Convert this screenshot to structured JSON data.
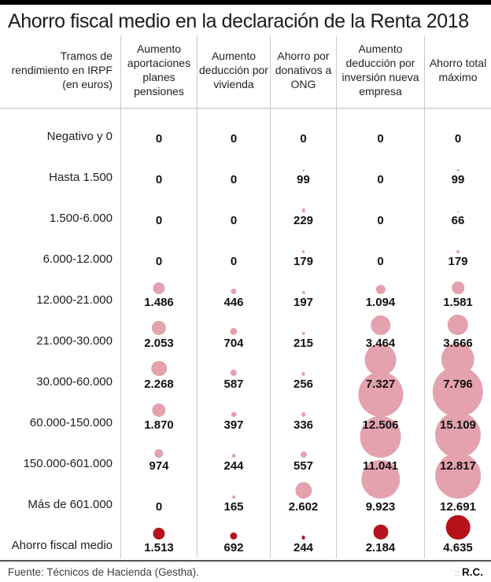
{
  "title": "Ahorro fiscal medio en la declaración de la Renta 2018",
  "source": "Fuente: Técnicos de Hacienda (Gestha).",
  "credit_prefix": "::",
  "credit": "R.C.",
  "colors": {
    "bubble_pink": "#e3a2ae",
    "bubble_red": "#b5121b",
    "topbar": "#000000",
    "divider": "#c9c9c9"
  },
  "chart_data": {
    "type": "table",
    "subtype": "bubble-table",
    "title": "Ahorro fiscal medio en la declaración de la Renta 2018",
    "row_header": "Tramos de rendimiento en IRPF (en euros)",
    "columns": [
      "Aumento aportaciones planes pensiones",
      "Aumento deducción por vivienda",
      "Ahorro por donativos a ONG",
      "Aumento deducción por inversión nueva empresa",
      "Ahorro total máximo"
    ],
    "rows": [
      {
        "label": "Negativo y 0",
        "values": [
          0,
          0,
          0,
          0,
          0
        ],
        "total_row": false
      },
      {
        "label": "Hasta 1.500",
        "values": [
          0,
          0,
          99,
          0,
          99
        ],
        "total_row": false
      },
      {
        "label": "1.500-6.000",
        "values": [
          0,
          0,
          229,
          0,
          66
        ],
        "total_row": false
      },
      {
        "label": "6.000-12.000",
        "values": [
          0,
          0,
          179,
          0,
          179
        ],
        "total_row": false
      },
      {
        "label": "12.000-21.000",
        "values": [
          1486,
          446,
          197,
          1094,
          1581
        ],
        "total_row": false
      },
      {
        "label": "21.000-30.000",
        "values": [
          2053,
          704,
          215,
          3464,
          3666
        ],
        "total_row": false
      },
      {
        "label": "30.000-60.000",
        "values": [
          2268,
          587,
          256,
          7327,
          7796
        ],
        "total_row": false
      },
      {
        "label": "60.000-150.000",
        "values": [
          1870,
          397,
          336,
          12506,
          15109
        ],
        "total_row": false
      },
      {
        "label": "150.000-601.000",
        "values": [
          974,
          244,
          557,
          11041,
          12817
        ],
        "total_row": false
      },
      {
        "label": "Más de 601.000",
        "values": [
          0,
          165,
          2602,
          9923,
          12691
        ],
        "total_row": false
      },
      {
        "label": "Ahorro fiscal medio",
        "values": [
          1513,
          692,
          244,
          2184,
          4635
        ],
        "total_row": true
      }
    ],
    "encoding": "bubble diameter scales with value; zero values show no bubble; total row bubbles are dark red",
    "number_format": "thousands separated by dots"
  }
}
